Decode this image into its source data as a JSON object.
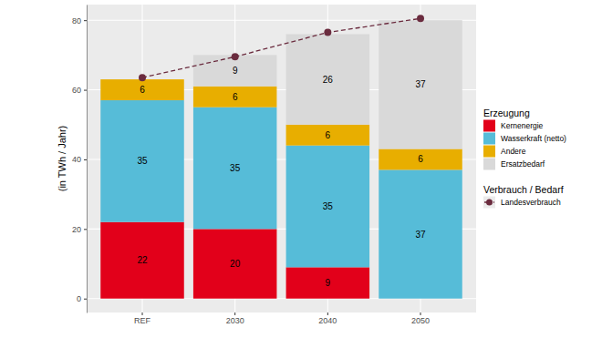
{
  "chart_data": {
    "type": "bar",
    "stacked": true,
    "data_labels": true,
    "grid": true,
    "legend": "right",
    "y_label": "(in TWh / Jahr)",
    "categories": [
      "REF",
      "2030",
      "2040",
      "2050"
    ],
    "ylim": [
      -4.0,
      84.5
    ],
    "yticks": [
      0,
      20,
      40,
      60,
      80
    ],
    "series": [
      {
        "name": "Kernenergie",
        "group": "Erzeugung",
        "color": "#e2001a",
        "values": [
          22,
          20,
          9,
          null
        ]
      },
      {
        "name": "Wasserkraft (netto)",
        "group": "Erzeugung",
        "color": "#56bcd8",
        "values": [
          35,
          35,
          35,
          37
        ]
      },
      {
        "name": "Andere",
        "group": "Erzeugung",
        "color": "#e8ae00",
        "values": [
          6,
          6,
          6,
          6
        ]
      },
      {
        "name": "Ersatzbedarf",
        "group": "Erzeugung",
        "color": "#d9d9d9",
        "values": [
          null,
          9,
          26,
          37
        ]
      },
      {
        "name": "Landesverbrauch",
        "group": "Verbrauch / Bedarf",
        "type": "line",
        "line_style": "dashed",
        "marker": "circle",
        "data_labels": false,
        "color": "#6b2c3f",
        "values": [
          63.5,
          69.5,
          76.5,
          80.5
        ]
      }
    ]
  }
}
